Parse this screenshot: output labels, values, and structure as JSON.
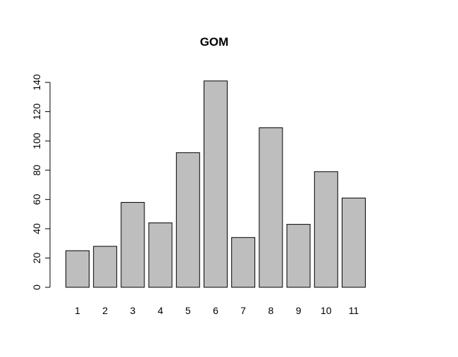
{
  "chart_data": {
    "type": "bar",
    "title": "GOM",
    "xlabel": "",
    "ylabel": "",
    "categories": [
      "1",
      "2",
      "3",
      "4",
      "5",
      "6",
      "7",
      "8",
      "9",
      "10",
      "11"
    ],
    "values": [
      25,
      28,
      58,
      44,
      92,
      141,
      34,
      109,
      43,
      79,
      61
    ],
    "ylim": [
      0,
      140
    ],
    "yticks": [
      "0",
      "20",
      "40",
      "60",
      "80",
      "100",
      "120",
      "140"
    ],
    "grid": false,
    "legend": "none",
    "colors": {
      "bar_fill": "#bebebe",
      "bar_stroke": "#000000"
    }
  }
}
